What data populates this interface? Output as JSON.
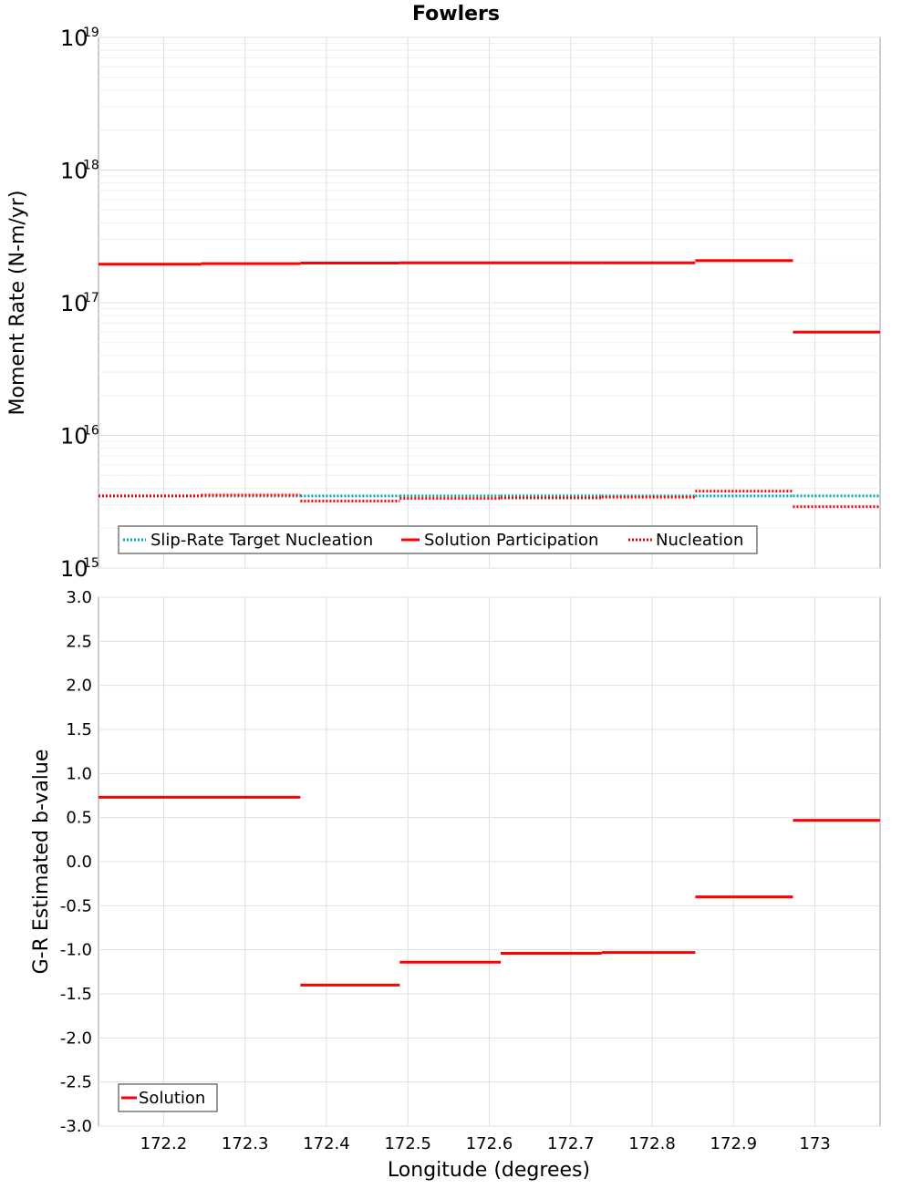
{
  "chart_data": [
    {
      "type": "line",
      "title": "Fowlers",
      "ylabel": "Moment Rate (N-m/yr)",
      "yscale": "log",
      "ylim": [
        1000000000000000.0,
        1e+19
      ],
      "xlim": [
        172.12,
        173.08
      ],
      "y_ticks": [
        {
          "base": "10",
          "exp": "19",
          "value": 1e+19
        },
        {
          "base": "10",
          "exp": "18",
          "value": 1e+18
        },
        {
          "base": "10",
          "exp": "17",
          "value": 1e+17
        },
        {
          "base": "10",
          "exp": "16",
          "value": 1e+16
        },
        {
          "base": "10",
          "exp": "15",
          "value": 1000000000000000.0
        }
      ],
      "series": [
        {
          "name": "Slip-Rate Target Nucleation",
          "color": "#00aaaa",
          "style": "dotted",
          "segments": [
            {
              "x0": 172.12,
              "x1": 172.246,
              "y": 3500000000000000.0
            },
            {
              "x0": 172.246,
              "x1": 172.368,
              "y": 3500000000000000.0
            },
            {
              "x0": 172.368,
              "x1": 172.49,
              "y": 3500000000000000.0
            },
            {
              "x0": 172.49,
              "x1": 172.614,
              "y": 3500000000000000.0
            },
            {
              "x0": 172.614,
              "x1": 172.738,
              "y": 3500000000000000.0
            },
            {
              "x0": 172.738,
              "x1": 172.853,
              "y": 3500000000000000.0
            },
            {
              "x0": 172.853,
              "x1": 172.973,
              "y": 3500000000000000.0
            },
            {
              "x0": 172.973,
              "x1": 173.08,
              "y": 3500000000000000.0
            }
          ]
        },
        {
          "name": "Solution Participation",
          "color": "#ff0000",
          "style": "solid",
          "segments": [
            {
              "x0": 172.12,
              "x1": 172.246,
              "y": 1.95e+17
            },
            {
              "x0": 172.246,
              "x1": 172.368,
              "y": 1.97e+17
            },
            {
              "x0": 172.368,
              "x1": 172.49,
              "y": 1.99e+17
            },
            {
              "x0": 172.49,
              "x1": 172.614,
              "y": 2e+17
            },
            {
              "x0": 172.614,
              "x1": 172.738,
              "y": 2e+17
            },
            {
              "x0": 172.738,
              "x1": 172.853,
              "y": 2e+17
            },
            {
              "x0": 172.853,
              "x1": 172.973,
              "y": 2.08e+17
            },
            {
              "x0": 172.973,
              "x1": 173.08,
              "y": 6e+16
            }
          ]
        },
        {
          "name": "Nucleation",
          "color": "#ff0000",
          "style": "dotted",
          "segments": [
            {
              "x0": 172.12,
              "x1": 172.246,
              "y": 3500000000000000.0
            },
            {
              "x0": 172.246,
              "x1": 172.368,
              "y": 3550000000000000.0
            },
            {
              "x0": 172.368,
              "x1": 172.49,
              "y": 3200000000000000.0
            },
            {
              "x0": 172.49,
              "x1": 172.614,
              "y": 3350000000000000.0
            },
            {
              "x0": 172.614,
              "x1": 172.738,
              "y": 3380000000000000.0
            },
            {
              "x0": 172.738,
              "x1": 172.853,
              "y": 3420000000000000.0
            },
            {
              "x0": 172.853,
              "x1": 172.973,
              "y": 3800000000000000.0
            },
            {
              "x0": 172.973,
              "x1": 173.08,
              "y": 2900000000000000.0
            }
          ]
        }
      ],
      "legend_position": "bottom-left"
    },
    {
      "type": "line",
      "xlabel": "Longitude (degrees)",
      "ylabel": "G-R Estimated b-value",
      "ylim": [
        -3.0,
        3.0
      ],
      "xlim": [
        172.12,
        173.08
      ],
      "y_ticks": [
        "3.0",
        "2.5",
        "2.0",
        "1.5",
        "1.0",
        "0.5",
        "0.0",
        "-0.5",
        "-1.0",
        "-1.5",
        "-2.0",
        "-2.5",
        "-3.0"
      ],
      "x_ticks": [
        "172.2",
        "172.3",
        "172.4",
        "172.5",
        "172.6",
        "172.7",
        "172.8",
        "172.9",
        "173"
      ],
      "series": [
        {
          "name": "Solution",
          "color": "#ff0000",
          "style": "solid",
          "segments": [
            {
              "x0": 172.12,
              "x1": 172.246,
              "y": 0.73
            },
            {
              "x0": 172.246,
              "x1": 172.368,
              "y": 0.73
            },
            {
              "x0": 172.368,
              "x1": 172.49,
              "y": -1.4
            },
            {
              "x0": 172.49,
              "x1": 172.614,
              "y": -1.14
            },
            {
              "x0": 172.614,
              "x1": 172.738,
              "y": -1.04
            },
            {
              "x0": 172.738,
              "x1": 172.853,
              "y": -1.03
            },
            {
              "x0": 172.853,
              "x1": 172.973,
              "y": -0.4
            },
            {
              "x0": 172.973,
              "x1": 173.08,
              "y": 0.47
            }
          ]
        }
      ],
      "legend_position": "bottom-left"
    }
  ]
}
